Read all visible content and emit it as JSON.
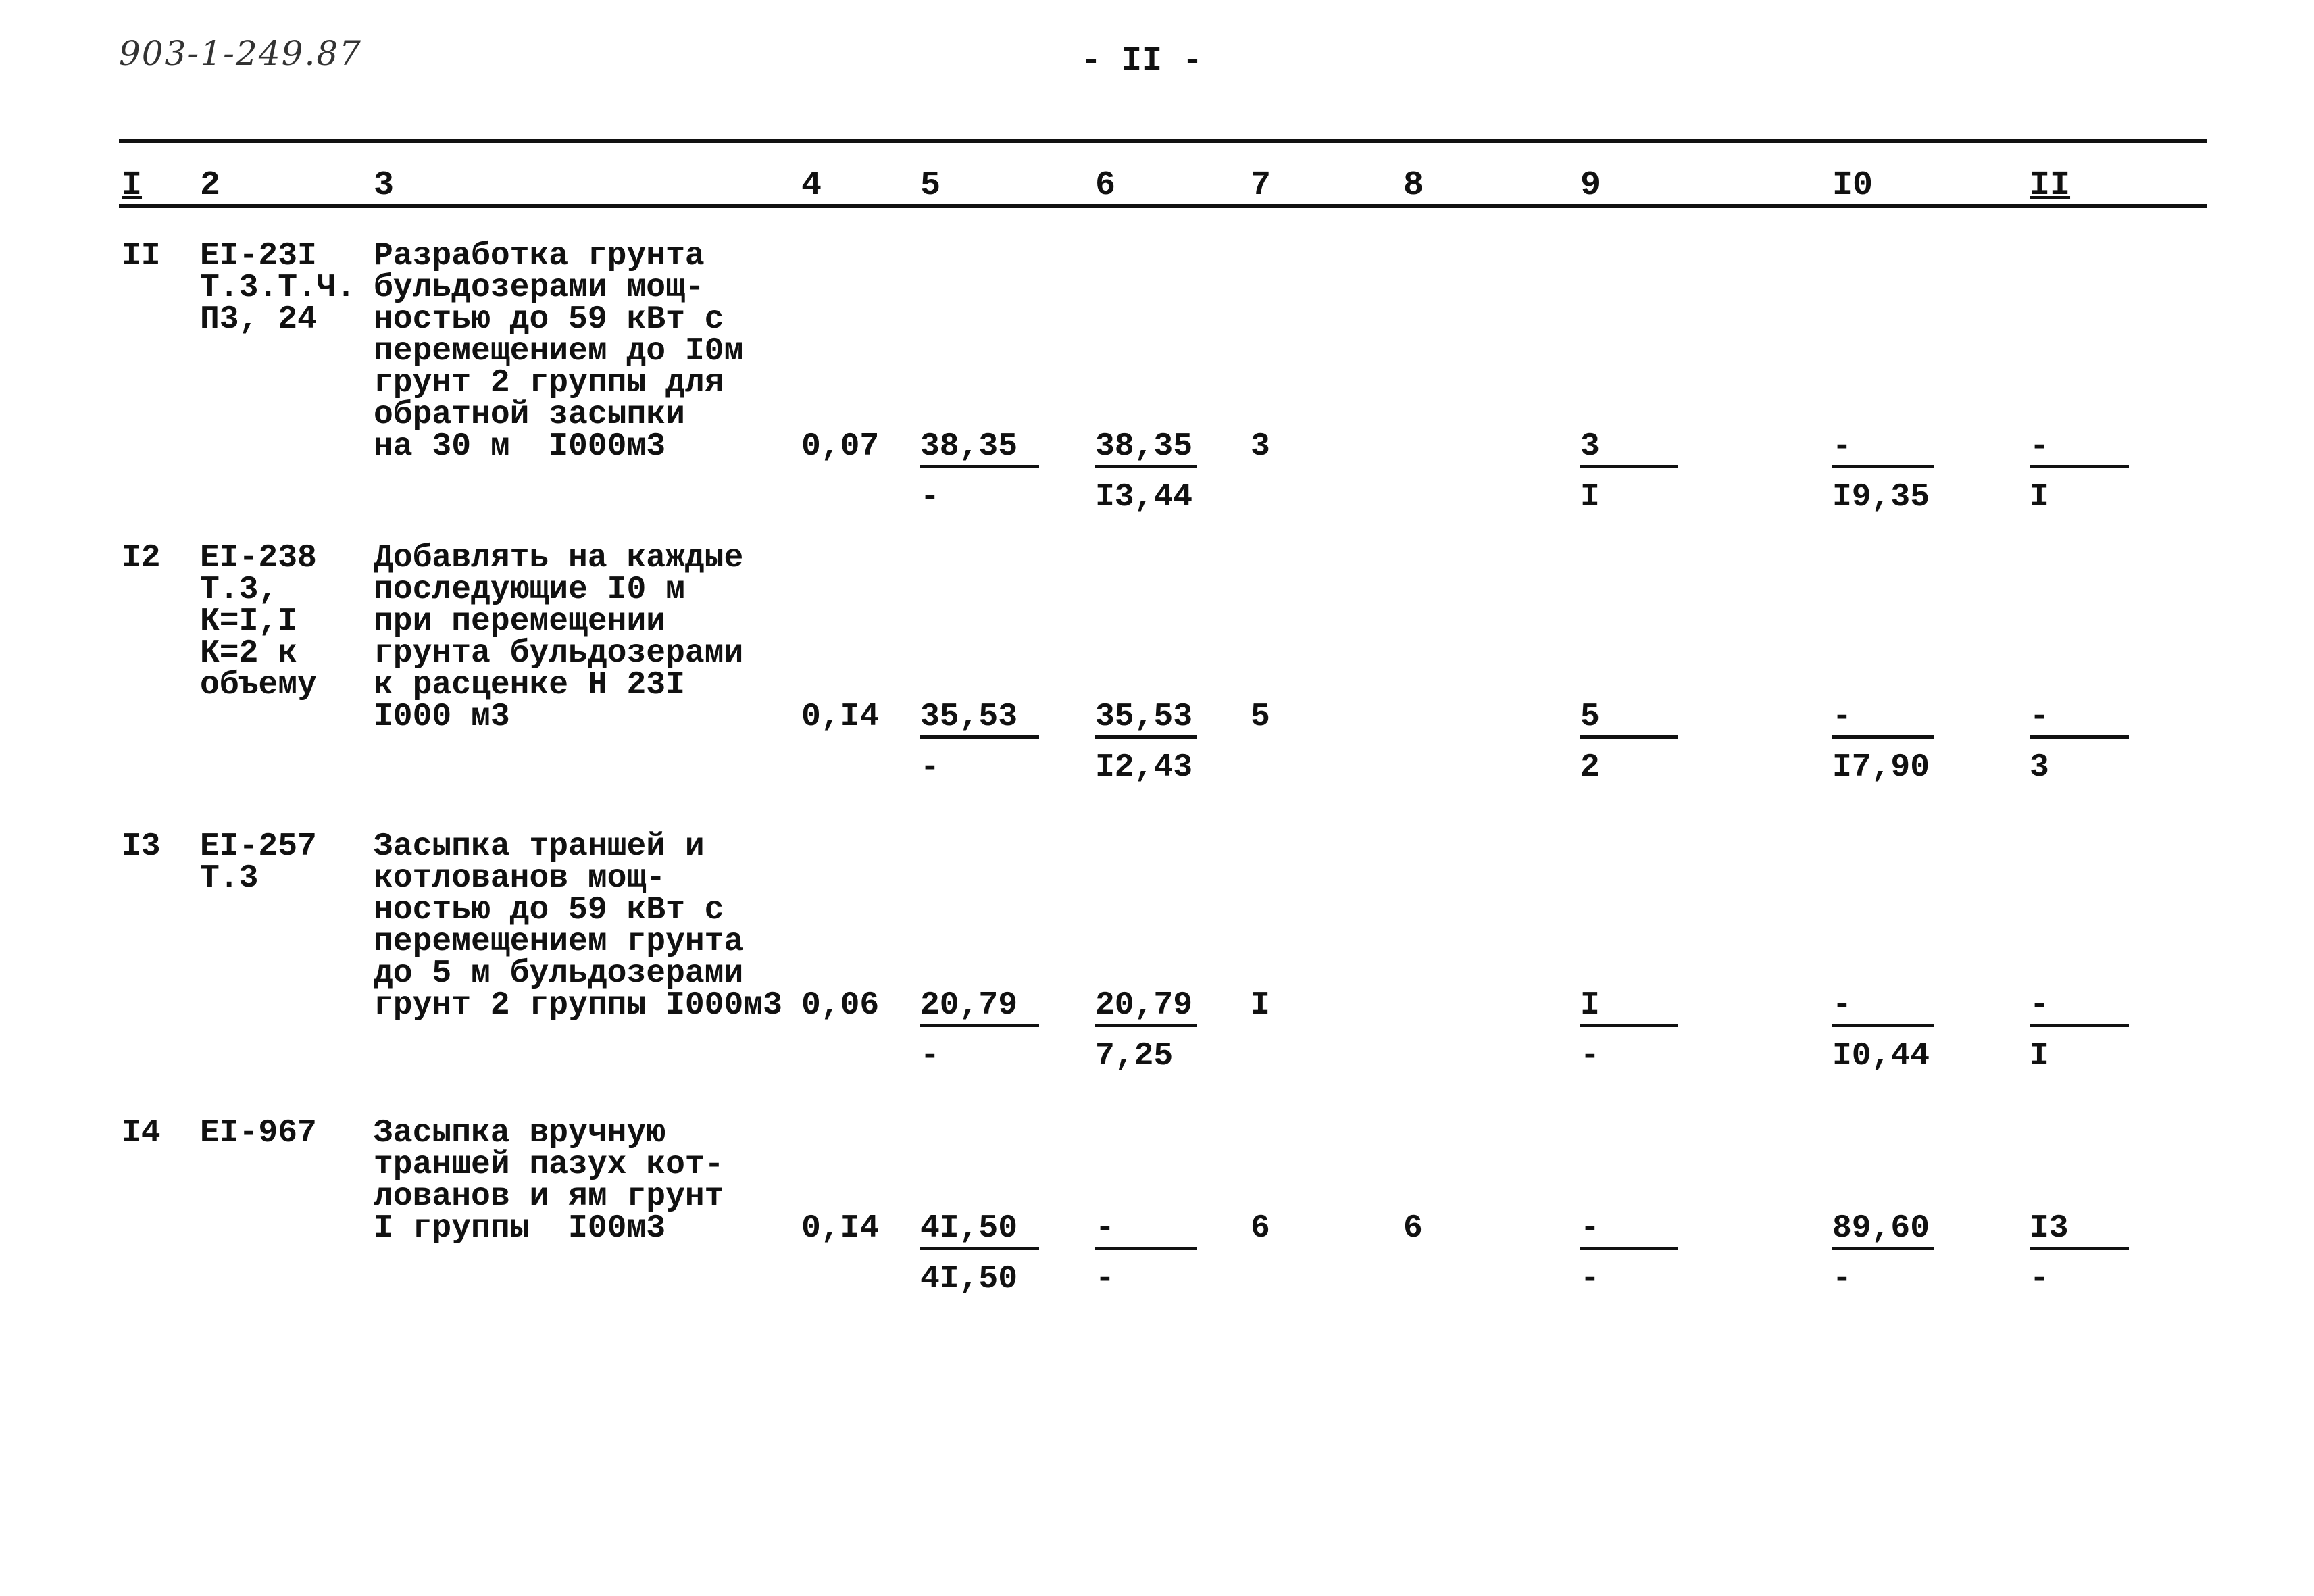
{
  "document_code": "903-1-249.87",
  "page_number": "- II -",
  "header": [
    "I",
    "2",
    "3",
    "4",
    "5",
    "6",
    "7",
    "8",
    "9",
    "I0",
    "II"
  ],
  "rows": [
    {
      "num": "II",
      "code": [
        "EI-23I",
        "Т.3.Т.Ч.",
        "П3, 24"
      ],
      "description": [
        "Разработка грунта",
        "бульдозерами мощ-",
        "ностью до 59 кВт с",
        "перемещением до I0м",
        "грунт 2 группы для",
        "обратной засыпки",
        "на 30 м  I000м3"
      ],
      "c4": "0,07",
      "c5": [
        "38,35",
        "-"
      ],
      "c6": [
        "38,35",
        "I3,44"
      ],
      "c7": "3",
      "c8": "",
      "c9": [
        "3",
        "I"
      ],
      "c10": [
        "-",
        "I9,35"
      ],
      "c11": [
        "-",
        "I"
      ]
    },
    {
      "num": "I2",
      "code": [
        "EI-238",
        "Т.3,",
        "К=I,I",
        "К=2 к",
        "объему"
      ],
      "description": [
        "Добавлять на каждые",
        "последующие I0 м",
        "при перемещении",
        "грунта бульдозерами",
        "к расценке Н 23I",
        "I000 м3"
      ],
      "c4": "0,I4",
      "c5": [
        "35,53",
        "-"
      ],
      "c6": [
        "35,53",
        "I2,43"
      ],
      "c7": "5",
      "c8": "",
      "c9": [
        "5",
        "2"
      ],
      "c10": [
        "-",
        "I7,90"
      ],
      "c11": [
        "-",
        "3"
      ]
    },
    {
      "num": "I3",
      "code": [
        "EI-257",
        "Т.3"
      ],
      "description": [
        "Засыпка траншей и",
        "котлованов мощ-",
        "ностью до 59 кВт с",
        "перемещением грунта",
        "до 5 м бульдозерами",
        "грунт 2 группы I000м3"
      ],
      "c4": "0,06",
      "c5": [
        "20,79",
        "-"
      ],
      "c6": [
        "20,79",
        "7,25"
      ],
      "c7": "I",
      "c8": "",
      "c9": [
        "I",
        "-"
      ],
      "c10": [
        "-",
        "I0,44"
      ],
      "c11": [
        "-",
        "I"
      ]
    },
    {
      "num": "I4",
      "code": [
        "EI-967"
      ],
      "description": [
        "Засыпка вручную",
        "траншей пазух кот-",
        "лованов и ям грунт",
        "I группы  I00м3"
      ],
      "c4": "0,I4",
      "c5": [
        "4I,50",
        "4I,50"
      ],
      "c6": [
        "-",
        "-"
      ],
      "c7": "6",
      "c8": "6",
      "c9": [
        "-",
        "-"
      ],
      "c10": [
        "89,60",
        "-"
      ],
      "c11": [
        "I3",
        "-"
      ]
    }
  ]
}
